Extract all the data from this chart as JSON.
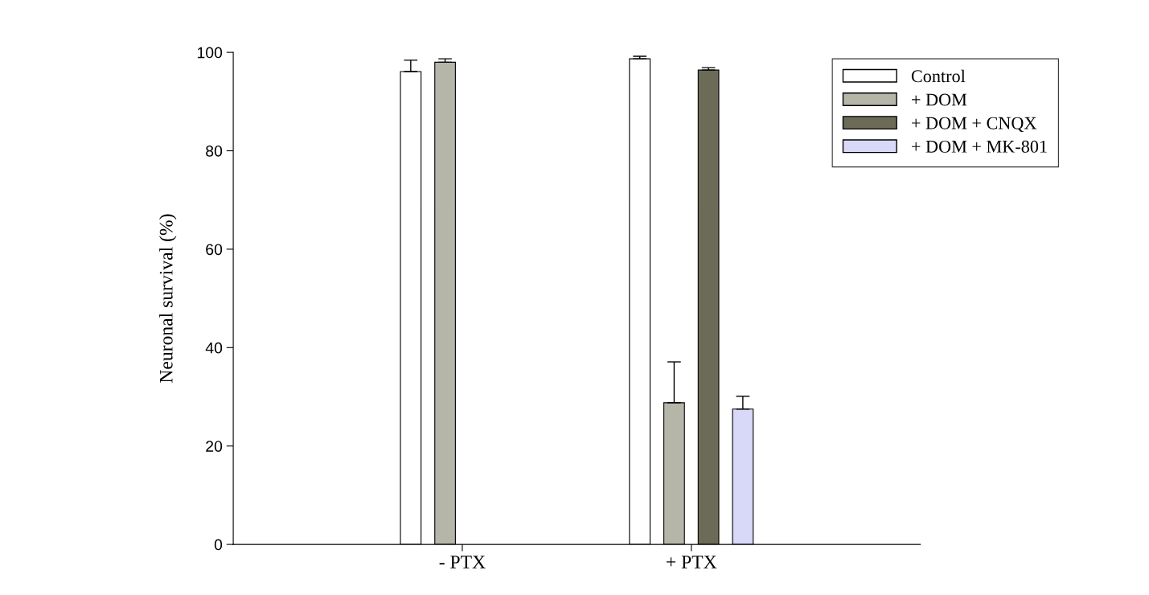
{
  "chart_data": {
    "type": "bar",
    "ylabel": "Neuronal survival (%)",
    "categories": [
      "- PTX",
      "+ PTX"
    ],
    "series": [
      {
        "name": "Control",
        "color": "#ffffff",
        "values": [
          96.1,
          98.7
        ],
        "errors": [
          [
            96.1,
            98.4
          ],
          [
            98.7,
            99.2
          ]
        ]
      },
      {
        "name": "+ DOM",
        "color": "#b5b5a8",
        "values": [
          98.0,
          28.8
        ],
        "errors": [
          [
            98.0,
            98.7
          ],
          [
            28.8,
            37.1
          ]
        ]
      },
      {
        "name": "+ DOM + CNQX",
        "color": "#6b6b57",
        "values": [
          null,
          96.4
        ],
        "errors": [
          null,
          [
            96.4,
            96.9
          ]
        ]
      },
      {
        "name": "+ DOM + MK-801",
        "color": "#d8d8f8",
        "values": [
          null,
          27.5
        ],
        "errors": [
          null,
          [
            27.5,
            30.1
          ]
        ]
      }
    ],
    "ylim": [
      0,
      100
    ],
    "yticks": [
      0,
      20,
      40,
      60,
      80,
      100
    ],
    "grid": false,
    "legend": "top right"
  }
}
